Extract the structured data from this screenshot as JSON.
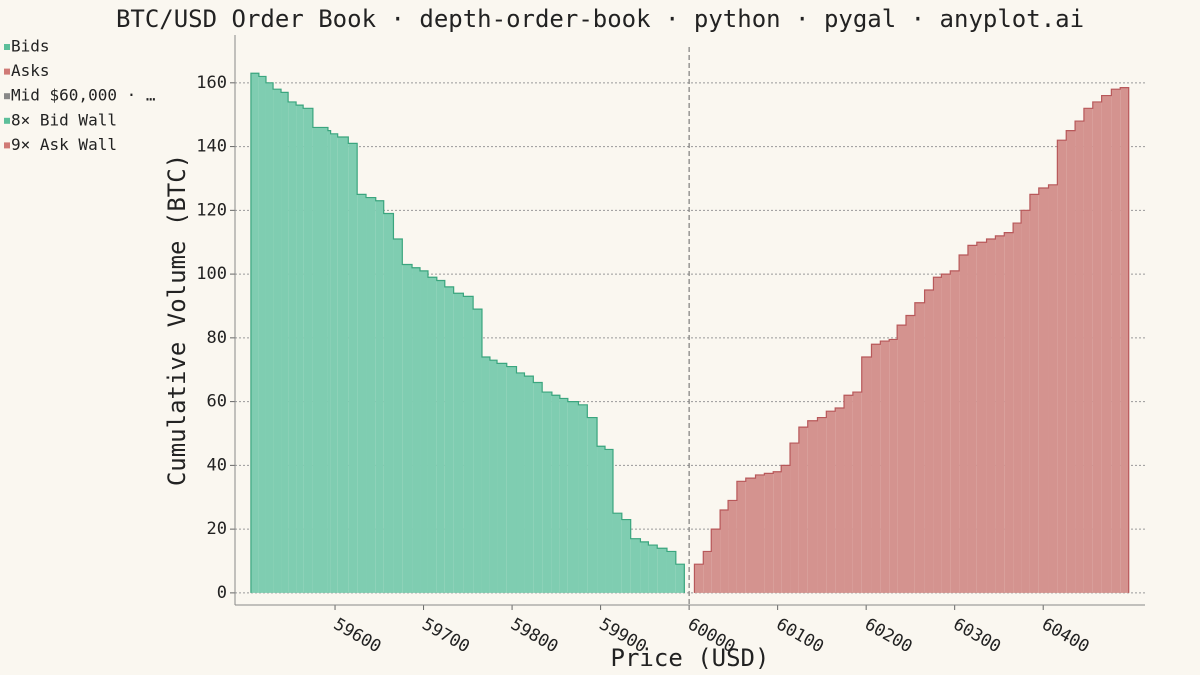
{
  "chart_data": {
    "type": "depth",
    "title": "BTC/USD Order Book · depth-order-book · python · pygal · anyplot.ai",
    "x_label": "Price (USD)",
    "y_label": "Cumulative Volume (BTC)",
    "xlim": [
      59487,
      60515
    ],
    "ylim": [
      -3.8,
      175
    ],
    "xticks": [
      59600,
      59700,
      59800,
      59900,
      60000,
      60100,
      60200,
      60300,
      60400
    ],
    "yticks": [
      0,
      20,
      40,
      60,
      80,
      100,
      120,
      140,
      160
    ],
    "grid": true,
    "mid": 60000,
    "legend": [
      {
        "name": "Bids",
        "color": "#5cbf9a"
      },
      {
        "name": "Asks",
        "color": "#d07a76"
      },
      {
        "name": "Mid $60,000 · …",
        "color": "#888888"
      },
      {
        "name": "8× Bid Wall",
        "color": "#5cbf9a"
      },
      {
        "name": "9× Ask Wall",
        "color": "#d07a76"
      }
    ],
    "series": [
      {
        "name": "Bids",
        "color": "#7fcdb1",
        "line_color": "#3aa57e",
        "x": [
          59505,
          59514,
          59522,
          59530,
          59539,
          59547,
          59556,
          59564,
          59575,
          59592,
          59595,
          59603,
          59615,
          59625,
          59635,
          59646,
          59655,
          59666,
          59676,
          59687,
          59696,
          59705,
          59715,
          59724,
          59734,
          59745,
          59756,
          59766,
          59775,
          59783,
          59794,
          59805,
          59814,
          59824,
          59834,
          59845,
          59854,
          59863,
          59875,
          59885,
          59896,
          59905,
          59914,
          59924,
          59934,
          59945,
          59954,
          59964,
          59975,
          59985
        ],
        "values": [
          163,
          162,
          160,
          158,
          157,
          154,
          153,
          152,
          146,
          145,
          144,
          143,
          141,
          125,
          124,
          123,
          119,
          111,
          103,
          102,
          101,
          99,
          98,
          96,
          94,
          93,
          89,
          74,
          73,
          72,
          71,
          69,
          68,
          66,
          63,
          62,
          61,
          60,
          59,
          55,
          46,
          45,
          25,
          23,
          17,
          16,
          15,
          14,
          13,
          9
        ]
      },
      {
        "name": "Asks",
        "color": "#d4938f",
        "line_color": "#b8585a",
        "x": [
          60006,
          60016,
          60025,
          60035,
          60044,
          60054,
          60064,
          60075,
          60085,
          60095,
          60104,
          60114,
          60124,
          60134,
          60145,
          60155,
          60165,
          60175,
          60185,
          60195,
          60206,
          60216,
          60226,
          60235,
          60245,
          60255,
          60266,
          60276,
          60285,
          60295,
          60305,
          60315,
          60325,
          60336,
          60346,
          60356,
          60366,
          60375,
          60385,
          60395,
          60406,
          60416,
          60426,
          60436,
          60446,
          60456,
          60466,
          60477,
          60487
        ],
        "values": [
          9,
          13,
          20,
          26,
          29,
          35,
          36,
          37,
          37.5,
          38,
          40,
          47,
          52,
          54,
          55,
          57,
          58,
          62,
          63,
          74,
          78,
          79,
          79.5,
          84,
          87,
          91,
          95,
          99,
          100,
          101,
          106,
          109,
          110,
          111,
          112,
          113,
          116,
          120,
          125,
          127,
          128,
          142,
          145,
          148,
          152,
          154,
          156,
          158,
          158.5
        ]
      }
    ]
  }
}
